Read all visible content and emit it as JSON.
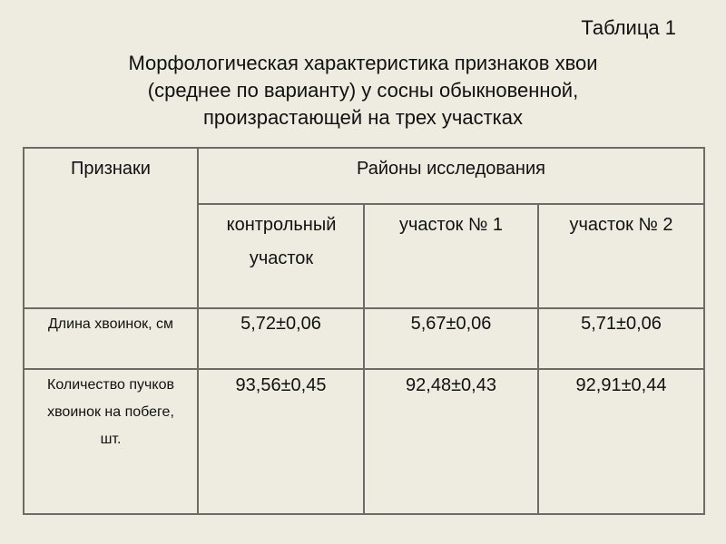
{
  "caption": {
    "table_number": "Таблица 1",
    "lines": [
      "Морфологическая характеристика признаков хвои",
      "(среднее по варианту) у сосны обыкновенной,",
      "произрастающей на трех участках"
    ]
  },
  "table": {
    "header_feature": "Признаки",
    "header_group": "Районы исследования",
    "columns": [
      "контрольный участок",
      "участок № 1",
      "участок № 2"
    ],
    "rows": [
      {
        "feature": "Длина хвоинок, см",
        "values": [
          "5,72±0,06",
          "5,67±0,06",
          "5,71±0,06"
        ]
      },
      {
        "feature": "Количество пучков хвоинок на побеге, шт.",
        "values": [
          "93,56±0,45",
          "92,48±0,43",
          "92,91±0,44"
        ]
      }
    ]
  }
}
